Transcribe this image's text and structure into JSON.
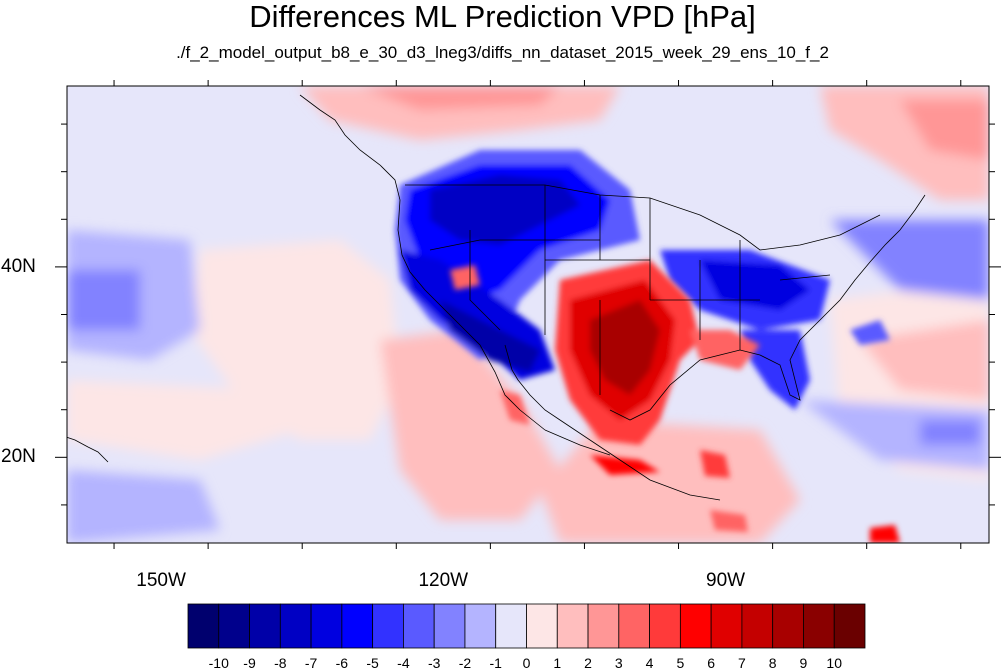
{
  "title": "Differences ML Prediction VPD [hPa]",
  "subtitle": "./f_2_model_output_b8_e_30_d3_lneg3/diffs_nn_dataset_2015_week_29_ens_10_f_2",
  "map": {
    "lon_range": [
      -160,
      -62
    ],
    "lat_range": [
      11,
      59
    ],
    "lat_tick_labels": [
      {
        "lat": 40,
        "label": "40N"
      },
      {
        "lat": 20,
        "label": "20N"
      }
    ],
    "lon_tick_labels": [
      {
        "lon": -150,
        "label": "150W"
      },
      {
        "lon": -120,
        "label": "120W"
      },
      {
        "lon": -90,
        "label": "90W"
      }
    ]
  },
  "colorbar": {
    "labels": [
      "-10",
      "-9",
      "-8",
      "-7",
      "-6",
      "-5",
      "-4",
      "-3",
      "-2",
      "-1",
      "0",
      "1",
      "2",
      "3",
      "4",
      "5",
      "6",
      "7",
      "8",
      "9",
      "10"
    ],
    "colors": [
      "#00006e",
      "#00008c",
      "#0000a8",
      "#0000c4",
      "#0000e0",
      "#0000ff",
      "#3232ff",
      "#5a5aff",
      "#8282ff",
      "#b4b4ff",
      "#e6e6fa",
      "#fde6e6",
      "#ffbebe",
      "#ff9696",
      "#ff6464",
      "#ff3a3a",
      "#ff0000",
      "#e00000",
      "#c40000",
      "#a80000",
      "#8a0000",
      "#6a0000"
    ]
  }
}
